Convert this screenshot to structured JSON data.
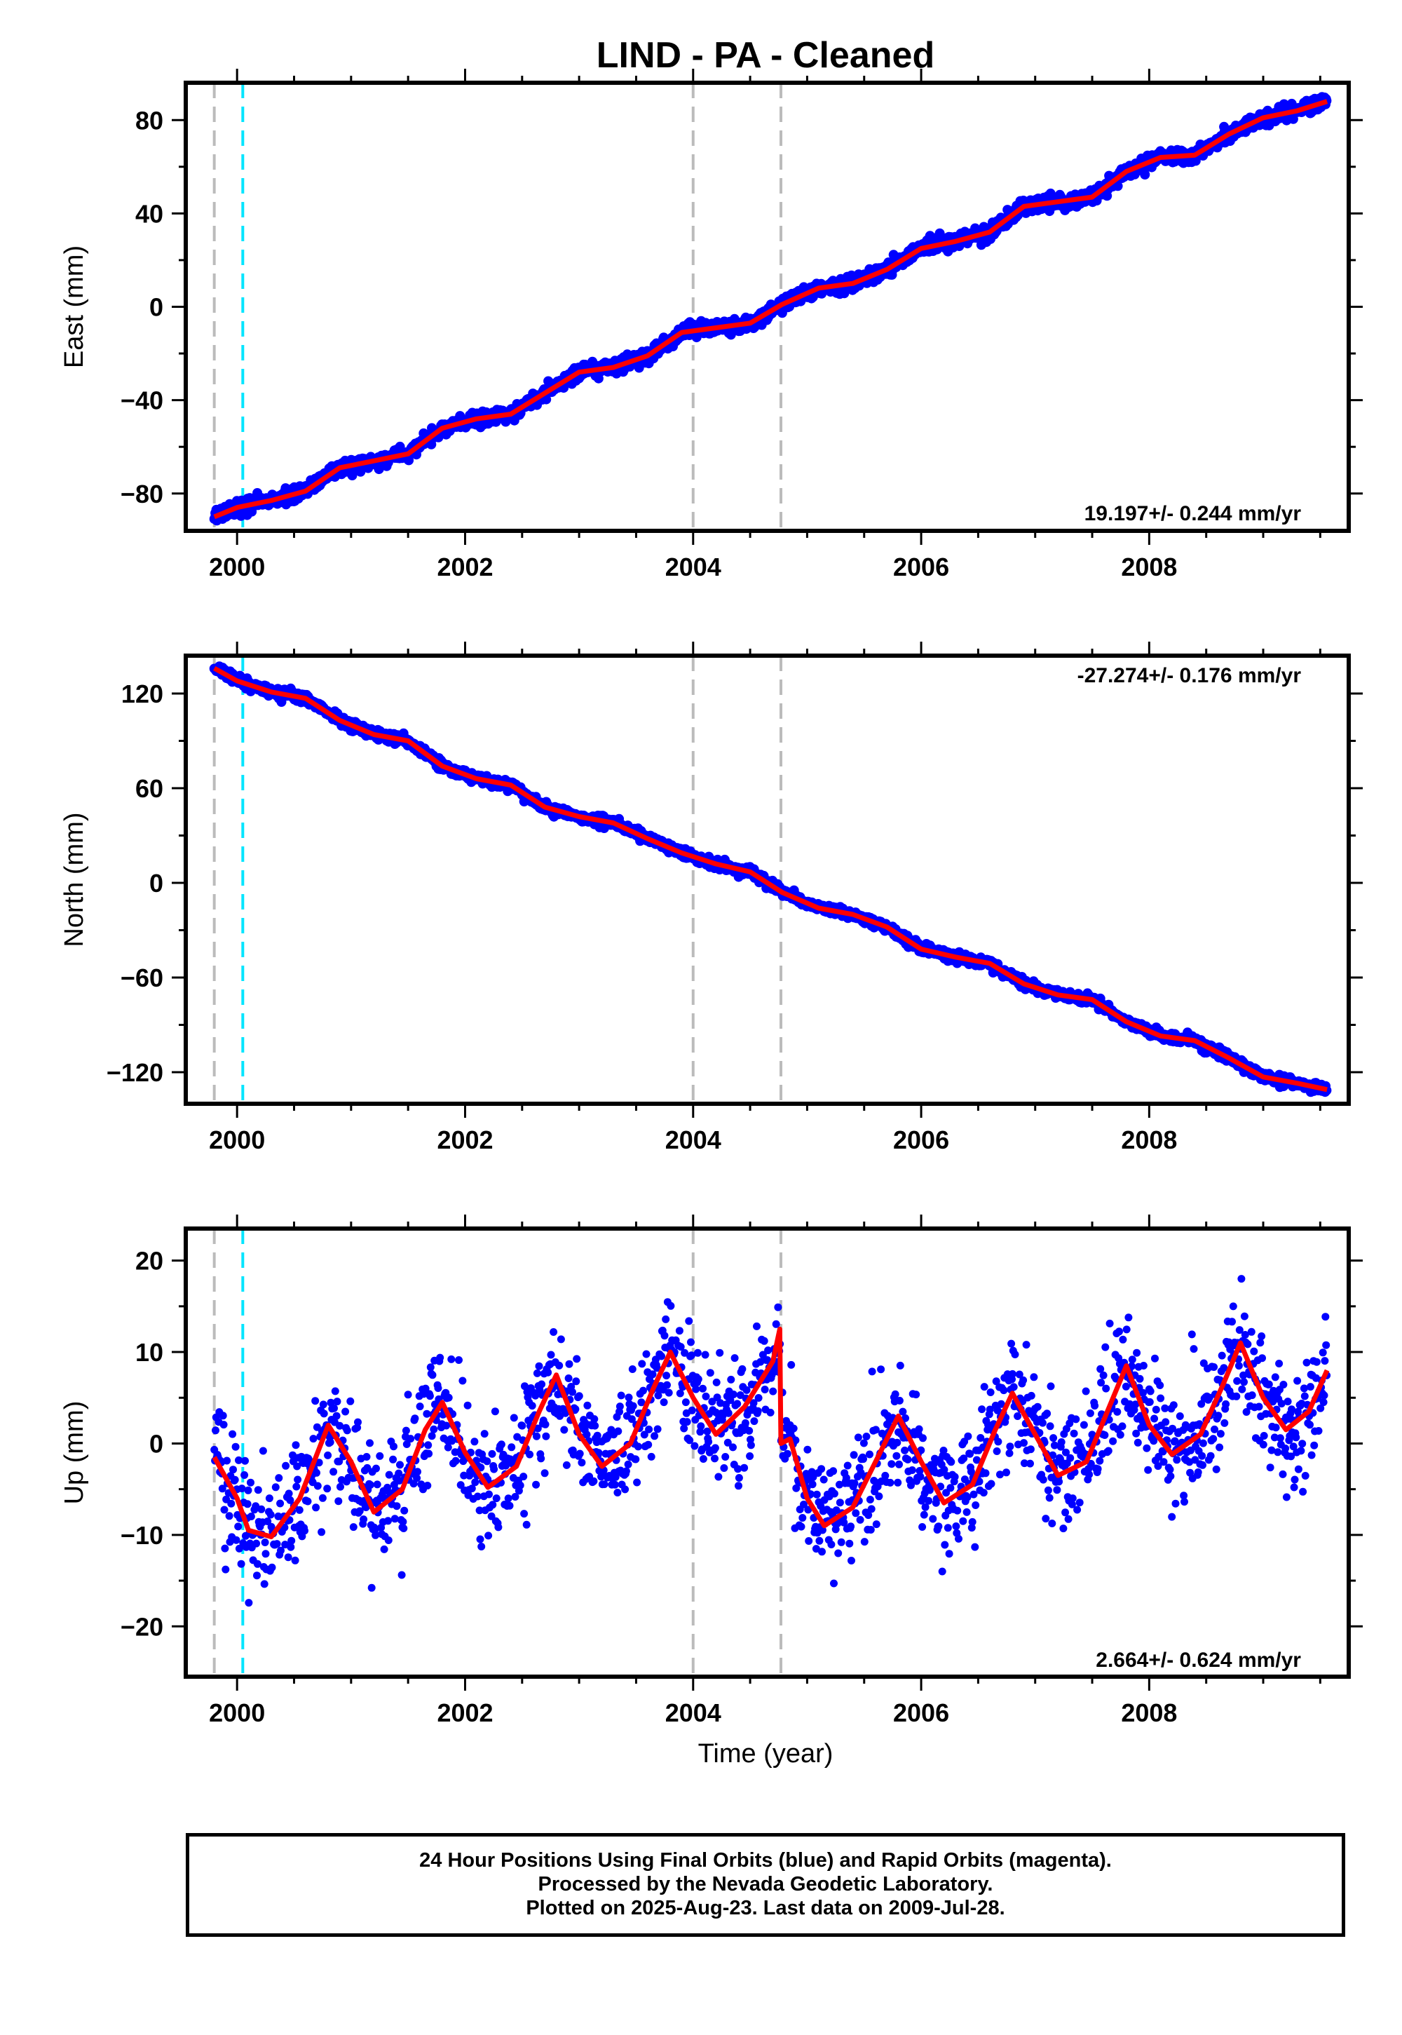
{
  "title": "LIND  - PA - Cleaned",
  "xlabel": "Time (year)",
  "x_ticks": [
    "2000",
    "2002",
    "2004",
    "2006",
    "2008"
  ],
  "colors": {
    "data": "#0000ff",
    "model": "#ff0000",
    "gray_marker": "#bbbbbb",
    "cyan_marker": "#00e5ff"
  },
  "footer": {
    "line1": "24 Hour Positions Using Final Orbits (blue) and Rapid Orbits (magenta).",
    "line2": "Processed by the Nevada Geodetic Laboratory.",
    "line3": "Plotted on 2025-Aug-23. Last data on 2009-Jul-28."
  },
  "chart_data": [
    {
      "type": "scatter",
      "panel": "east",
      "ylabel": "East (mm)",
      "rate_label": "19.197+/- 0.244 mm/yr",
      "xlim": [
        1999.55,
        2009.75
      ],
      "ylim": [
        -96,
        96
      ],
      "y_ticks": [
        "80",
        "40",
        "0",
        "−40",
        "−80"
      ],
      "y_tick_values": [
        80,
        40,
        0,
        -40,
        -80
      ],
      "vlines": {
        "gray": [
          1999.8,
          2004.0,
          2004.77
        ],
        "cyan": [
          2000.05
        ]
      },
      "series": [
        {
          "x": [
            1999.8,
            2000.0,
            2000.3,
            2000.6,
            2000.9,
            2001.2,
            2001.5,
            2001.8,
            2002.1,
            2002.4,
            2002.7,
            2003.0,
            2003.3,
            2003.6,
            2003.9,
            2004.2,
            2004.5,
            2004.78,
            2005.1,
            2005.4,
            2005.7,
            2006.0,
            2006.3,
            2006.6,
            2006.9,
            2007.2,
            2007.5,
            2007.8,
            2008.1,
            2008.4,
            2008.7,
            2009.0,
            2009.3,
            2009.56
          ],
          "values": [
            -90,
            -86,
            -83,
            -79,
            -69,
            -66,
            -63,
            -52,
            -48,
            -46,
            -37,
            -28,
            -26,
            -21,
            -11,
            -9,
            -7,
            1,
            8,
            10,
            16,
            25,
            28,
            32,
            43,
            45,
            47,
            58,
            64,
            65,
            74,
            81,
            84,
            88
          ]
        }
      ]
    },
    {
      "type": "scatter",
      "panel": "north",
      "ylabel": "North (mm)",
      "rate_label": "-27.274+/- 0.176 mm/yr",
      "xlim": [
        1999.55,
        2009.75
      ],
      "ylim": [
        -140,
        144
      ],
      "y_ticks": [
        "120",
        "60",
        "0",
        "−60",
        "−120"
      ],
      "y_tick_values": [
        120,
        60,
        0,
        -60,
        -120
      ],
      "vlines": {
        "gray": [
          1999.8,
          2004.0,
          2004.77
        ],
        "cyan": [
          2000.05
        ]
      },
      "series": [
        {
          "x": [
            1999.8,
            2000.0,
            2000.3,
            2000.6,
            2000.9,
            2001.2,
            2001.5,
            2001.8,
            2002.1,
            2002.4,
            2002.7,
            2003.0,
            2003.3,
            2003.6,
            2003.9,
            2004.2,
            2004.5,
            2004.78,
            2005.1,
            2005.4,
            2005.7,
            2006.0,
            2006.3,
            2006.6,
            2006.9,
            2007.2,
            2007.5,
            2007.8,
            2008.1,
            2008.4,
            2008.7,
            2009.0,
            2009.3,
            2009.56
          ],
          "values": [
            136,
            128,
            121,
            117,
            103,
            94,
            90,
            74,
            66,
            62,
            48,
            42,
            38,
            28,
            19,
            12,
            7,
            -6,
            -16,
            -20,
            -28,
            -42,
            -47,
            -51,
            -64,
            -71,
            -74,
            -88,
            -97,
            -100,
            -111,
            -123,
            -127,
            -131
          ]
        }
      ]
    },
    {
      "type": "scatter",
      "panel": "up",
      "ylabel": "Up (mm)",
      "rate_label": "2.664+/- 0.624 mm/yr",
      "xlim": [
        1999.55,
        2009.75
      ],
      "ylim": [
        -25.5,
        23.5
      ],
      "y_ticks": [
        "20",
        "10",
        "0",
        "−10",
        "−20"
      ],
      "y_tick_values": [
        20,
        10,
        0,
        -10,
        -20
      ],
      "vlines": {
        "gray": [
          1999.8,
          2004.0,
          2004.77
        ],
        "cyan": [
          2000.05
        ]
      },
      "series": [
        {
          "x": [
            1999.8,
            2000.0,
            2000.1,
            2000.3,
            2000.55,
            2000.8,
            2001.0,
            2001.2,
            2001.45,
            2001.65,
            2001.8,
            2002.0,
            2002.2,
            2002.45,
            2002.65,
            2002.8,
            2003.0,
            2003.2,
            2003.45,
            2003.65,
            2003.8,
            2004.0,
            2004.2,
            2004.45,
            2004.7,
            2004.76,
            2004.77,
            2004.85,
            2005.0,
            2005.15,
            2005.4,
            2005.6,
            2005.8,
            2006.0,
            2006.2,
            2006.45,
            2006.65,
            2006.8,
            2007.0,
            2007.2,
            2007.45,
            2007.65,
            2007.8,
            2008.0,
            2008.2,
            2008.45,
            2008.65,
            2008.8,
            2009.0,
            2009.2,
            2009.4,
            2009.56
          ],
          "values": [
            -1.5,
            -6,
            -9.5,
            -10.2,
            -6,
            2,
            -2,
            -7.5,
            -5,
            1.5,
            4.5,
            -1,
            -4.8,
            -2.5,
            3.5,
            7.5,
            1,
            -2.5,
            0,
            6,
            10,
            5,
            1,
            4,
            9,
            12.5,
            0,
            0.5,
            -6,
            -9,
            -7,
            -2,
            3,
            -2,
            -6.5,
            -4.5,
            1.5,
            5.5,
            1,
            -3.5,
            -2,
            4,
            8.5,
            2,
            -1.2,
            1,
            6.5,
            11,
            5,
            1.5,
            3.5,
            8
          ]
        }
      ]
    }
  ]
}
